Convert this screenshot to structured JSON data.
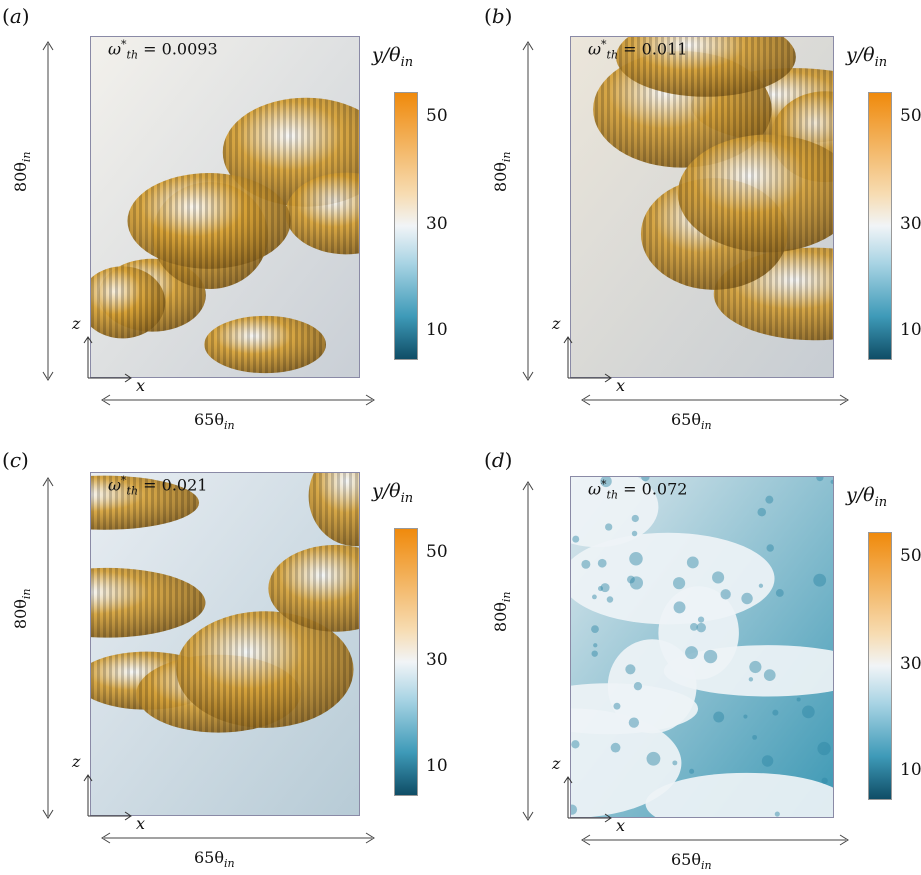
{
  "panels": [
    {
      "label": "a",
      "omega_value": "0.0093",
      "colors": [
        "#d9a336",
        "#f3f1ec",
        "#c9cfd6"
      ]
    },
    {
      "label": "b",
      "omega_value": "0.011",
      "colors": [
        "#d6a23a",
        "#ece6da",
        "#c7cdd3"
      ]
    },
    {
      "label": "c",
      "omega_value": "0.021",
      "colors": [
        "#d7a33a",
        "#e8edf2",
        "#b7cbd6"
      ]
    },
    {
      "label": "d",
      "omega_value": "0.072",
      "colors": [
        "#6ab5cc",
        "#dfe9ee",
        "#3c98b4"
      ]
    }
  ],
  "omega_prefix": "ω",
  "omega_sup": "*",
  "omega_sub": "th",
  "omega_eq": " = ",
  "width_dim": "65θ",
  "height_dim": "80θ",
  "dim_sub": "in",
  "colorbar": {
    "title": "y/θ",
    "title_sub": "in",
    "ticks": [
      "50",
      "30",
      "10"
    ]
  },
  "axis_x": "x",
  "axis_z": "z"
}
